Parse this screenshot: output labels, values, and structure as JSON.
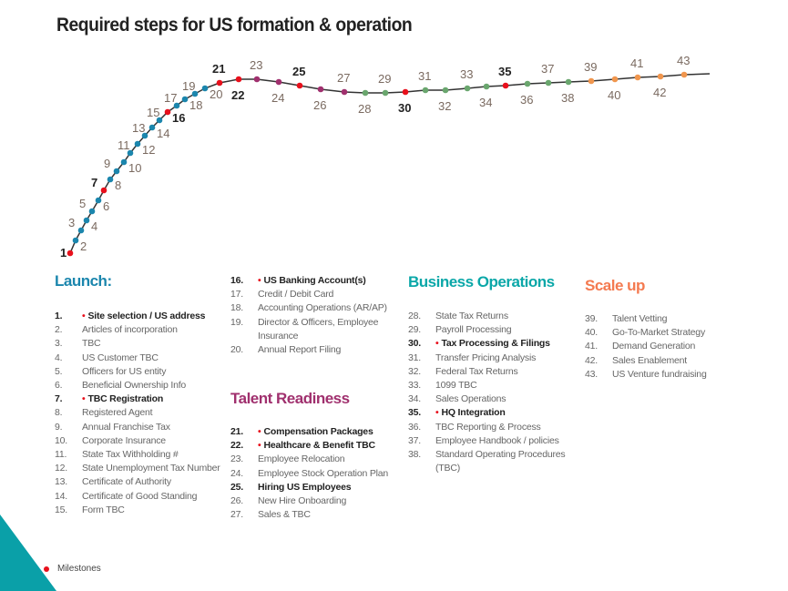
{
  "title": "Required steps for US formation & operation",
  "colors": {
    "launch": "#1b86ad",
    "talent": "#a0306e",
    "business": "#0aa7a8",
    "scale": "#f47a50",
    "milestone": "#e8101c",
    "business_dot": "#6aa66e",
    "scale_dot": "#f0964e"
  },
  "milestones": [
    1,
    7,
    16,
    21,
    22,
    25,
    30,
    35
  ],
  "sections": {
    "launch": {
      "title": "Launch:",
      "items": [
        {
          "n": "1.",
          "t": "Site selection / US address",
          "m": true
        },
        {
          "n": "2.",
          "t": "Articles of incorporation"
        },
        {
          "n": "3.",
          "t": "TBC"
        },
        {
          "n": "4.",
          "t": "US Customer TBC"
        },
        {
          "n": "5.",
          "t": "Officers for US entity"
        },
        {
          "n": "6.",
          "t": "Beneficial Ownership Info"
        },
        {
          "n": "7.",
          "t": "TBC Registration",
          "m": true
        },
        {
          "n": "8.",
          "t": "Registered Agent"
        },
        {
          "n": "9.",
          "t": "Annual Franchise Tax"
        },
        {
          "n": "10.",
          "t": "Corporate Insurance"
        },
        {
          "n": "11.",
          "t": "State Tax Withholding #"
        },
        {
          "n": "12.",
          "t": "State Unemployment Tax Number"
        },
        {
          "n": "13.",
          "t": "Certificate of Authority"
        },
        {
          "n": "14.",
          "t": "Certificate of Good Standing"
        },
        {
          "n": "15.",
          "t": "Form TBC"
        }
      ]
    },
    "launch2": {
      "items": [
        {
          "n": "16.",
          "t": "US Banking Account(s)",
          "m": true
        },
        {
          "n": "17.",
          "t": "Credit / Debit Card"
        },
        {
          "n": "18.",
          "t": "Accounting Operations (AR/AP)"
        },
        {
          "n": "19.",
          "t": "Director & Officers, Employee Insurance"
        },
        {
          "n": "20.",
          "t": "Annual Report Filing"
        }
      ]
    },
    "talent": {
      "title": "Talent Readiness",
      "items": [
        {
          "n": "21.",
          "t": "Compensation Packages",
          "m": true
        },
        {
          "n": "22.",
          "t": "Healthcare & Benefit TBC",
          "m": true
        },
        {
          "n": "23.",
          "t": "Employee Relocation"
        },
        {
          "n": "24.",
          "t": "Employee Stock Operation Plan"
        },
        {
          "n": "25.",
          "t": "Hiring US Employees",
          "b": true
        },
        {
          "n": "26.",
          "t": "New Hire Onboarding"
        },
        {
          "n": "27.",
          "t": "Sales & TBC"
        }
      ]
    },
    "business": {
      "title": "Business Operations",
      "items": [
        {
          "n": "28.",
          "t": "State Tax Returns"
        },
        {
          "n": "29.",
          "t": "Payroll Processing"
        },
        {
          "n": "30.",
          "t": "Tax Processing & Filings",
          "m": true
        },
        {
          "n": "31.",
          "t": "Transfer Pricing Analysis"
        },
        {
          "n": "32.",
          "t": "Federal Tax Returns"
        },
        {
          "n": "33.",
          "t": "1099 TBC"
        },
        {
          "n": "34.",
          "t": "Sales Operations"
        },
        {
          "n": "35.",
          "t": "HQ Integration",
          "m": true
        },
        {
          "n": "36.",
          "t": "TBC Reporting & Process"
        },
        {
          "n": "37.",
          "t": "Employee Handbook / policies"
        },
        {
          "n": "38.",
          "t": "Standard Operating Procedures (TBC)"
        }
      ]
    },
    "scale": {
      "title": "Scale up",
      "items": [
        {
          "n": "39.",
          "t": "Talent Vetting"
        },
        {
          "n": "40.",
          "t": "Go-To-Market Strategy"
        },
        {
          "n": "41.",
          "t": "Demand Generation"
        },
        {
          "n": "42.",
          "t": "Sales Enablement"
        },
        {
          "n": "43.",
          "t": "US Venture fundraising"
        }
      ]
    }
  },
  "legend": {
    "label": "Milestones"
  }
}
